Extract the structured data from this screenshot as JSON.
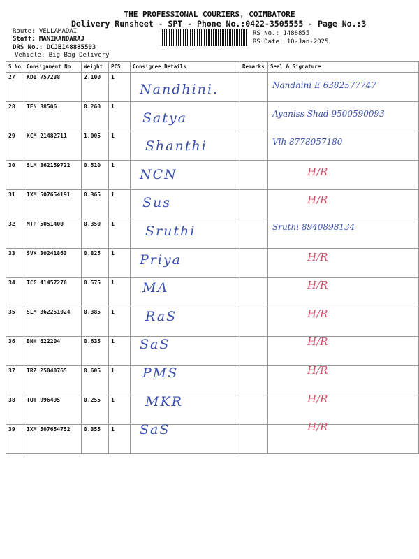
{
  "header": {
    "company": "THE PROFESSIONAL COURIERS, COIMBATORE",
    "subtitle": "Delivery Runsheet - SPT - Phone No.:0422-3505555 - Page No.:3",
    "route": "Route: VELLAMADAI",
    "staff": "Staff: MANIKANDARAJ",
    "drs": "DRS No.: DCJB148885503",
    "vehicle": "Vehicle: Big Bag Delivery",
    "rs_no": "RS No.: 1488855",
    "rs_date": "RS Date: 10-Jan-2025"
  },
  "columns": [
    "S No",
    "Consignment No",
    "Weight",
    "PCS",
    "Consignee Details",
    "Remarks",
    "Seal & Signature"
  ],
  "rows": [
    {
      "sno": "27",
      "cno": "KDI 757238",
      "weight": "2.100",
      "pcs": "1",
      "consignee": "Nandhini.",
      "seal": "Nandhini E 6382577747",
      "seal_color": "blue"
    },
    {
      "sno": "28",
      "cno": "TEN 38506",
      "weight": "0.260",
      "pcs": "1",
      "consignee": "Satya",
      "seal": "Ayaniss Shad 9500590093",
      "seal_color": "blue"
    },
    {
      "sno": "29",
      "cno": "KCM 21482711",
      "weight": "1.005",
      "pcs": "1",
      "consignee": "Shanthi",
      "seal": "Vlh 8778057180",
      "seal_color": "blue"
    },
    {
      "sno": "30",
      "cno": "SLM 362159722",
      "weight": "0.510",
      "pcs": "1",
      "consignee": "NCN",
      "seal": "H/R",
      "seal_color": "red"
    },
    {
      "sno": "31",
      "cno": "IXM 507654191",
      "weight": "0.365",
      "pcs": "1",
      "consignee": "Sus",
      "seal": "H/R",
      "seal_color": "red"
    },
    {
      "sno": "32",
      "cno": "MTP 5051400",
      "weight": "0.350",
      "pcs": "1",
      "consignee": "Sruthi",
      "seal": "Sruthi 8940898134",
      "seal_color": "blue"
    },
    {
      "sno": "33",
      "cno": "SVK 30241863",
      "weight": "0.825",
      "pcs": "1",
      "consignee": "Priya",
      "seal": "H/R",
      "seal_color": "red"
    },
    {
      "sno": "34",
      "cno": "TCG 41457270",
      "weight": "0.575",
      "pcs": "1",
      "consignee": "MA",
      "seal": "H/R",
      "seal_color": "red"
    },
    {
      "sno": "35",
      "cno": "SLM 362251024",
      "weight": "0.385",
      "pcs": "1",
      "consignee": "RaS",
      "seal": "H/R",
      "seal_color": "red"
    },
    {
      "sno": "36",
      "cno": "BNH 622204",
      "weight": "0.635",
      "pcs": "1",
      "consignee": "SaS",
      "seal": "H/R",
      "seal_color": "red"
    },
    {
      "sno": "37",
      "cno": "TRZ 25040765",
      "weight": "0.605",
      "pcs": "1",
      "consignee": "PMS",
      "seal": "H/R",
      "seal_color": "red"
    },
    {
      "sno": "38",
      "cno": "TUT 996495",
      "weight": "0.255",
      "pcs": "1",
      "consignee": "MKR",
      "seal": "H/R",
      "seal_color": "red"
    },
    {
      "sno": "39",
      "cno": "IXM 507654752",
      "weight": "0.355",
      "pcs": "1",
      "consignee": "SaS",
      "seal": "H/R",
      "seal_color": "red"
    }
  ],
  "colors": {
    "ink_blue": "#3a4fb0",
    "ink_red": "#d0506a"
  }
}
